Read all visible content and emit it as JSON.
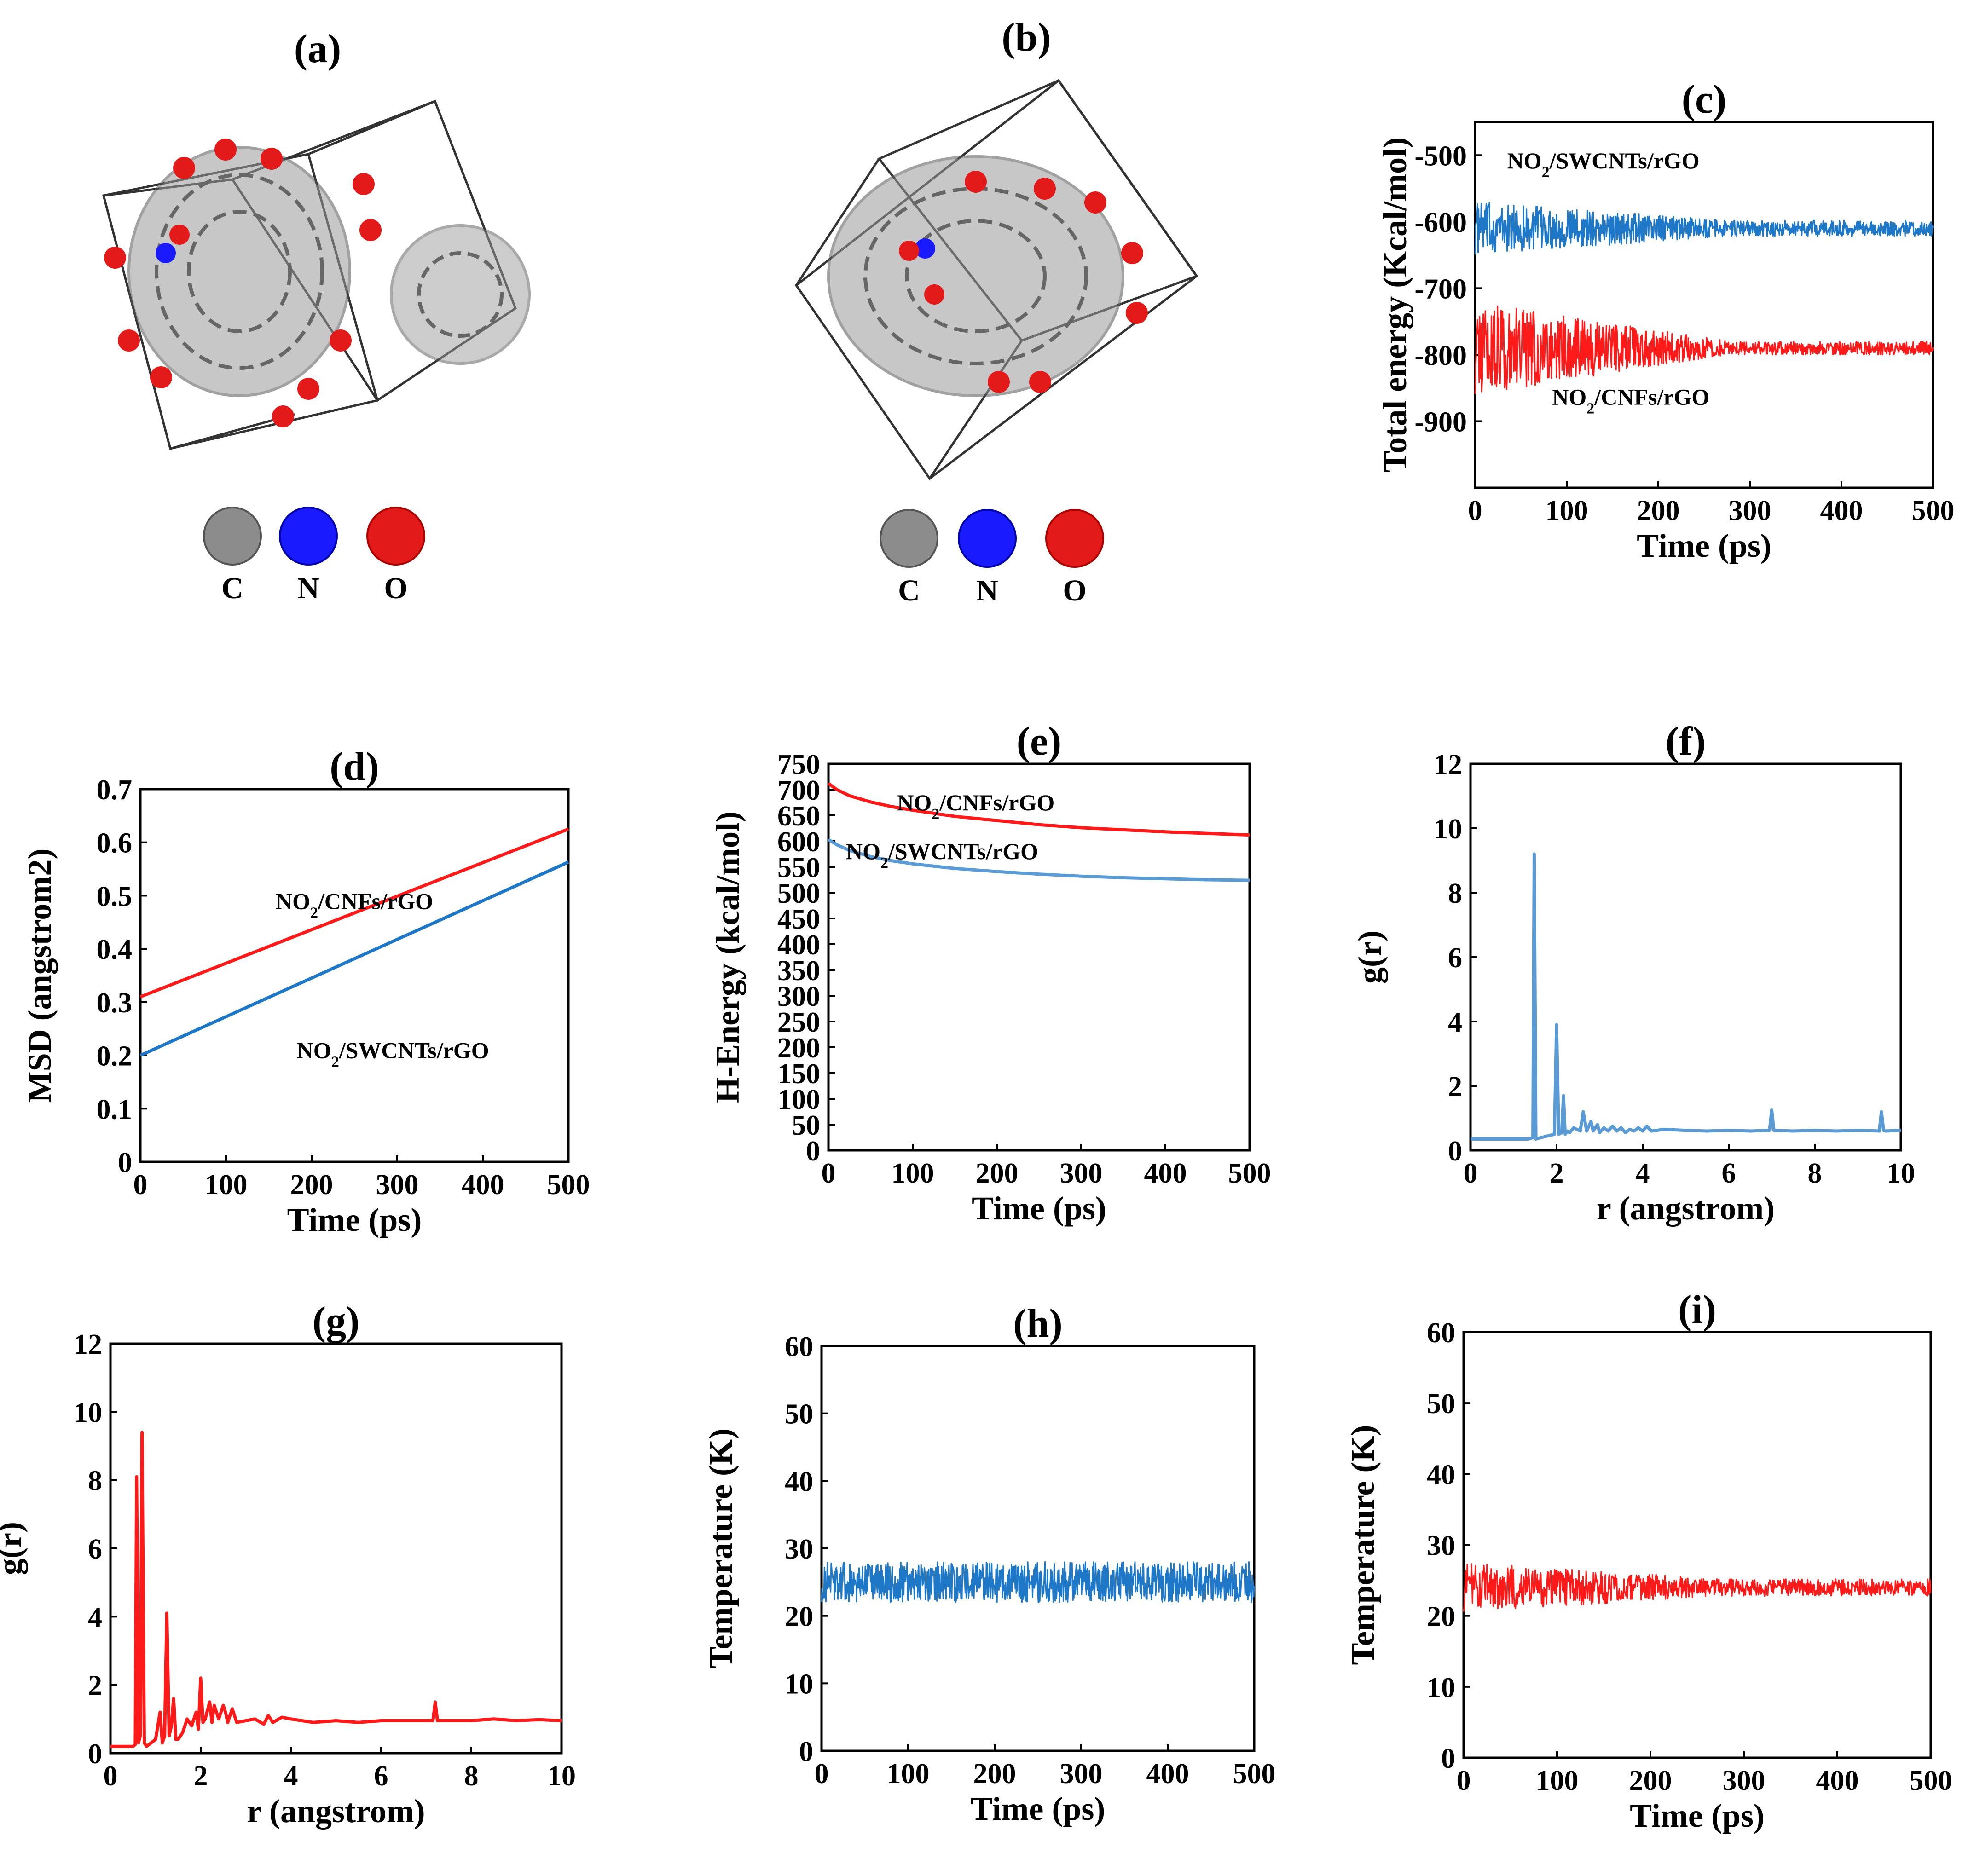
{
  "figure": {
    "colors": {
      "blue": "#1f77c8",
      "red": "#ff1a1a",
      "light_blue": "#5b9bd5",
      "carbon": "#8c8c8c",
      "nitrogen": "#1a1aff",
      "oxygen": "#e31a1a"
    }
  },
  "panel_a": {
    "label": "(a)",
    "legend": [
      {
        "element": "C",
        "color": "#8c8c8c"
      },
      {
        "element": "N",
        "color": "#1a1aff"
      },
      {
        "element": "O",
        "color": "#e31a1a"
      }
    ]
  },
  "panel_b": {
    "label": "(b)",
    "legend": [
      {
        "element": "C",
        "color": "#8c8c8c"
      },
      {
        "element": "N",
        "color": "#1a1aff"
      },
      {
        "element": "O",
        "color": "#e31a1a"
      }
    ]
  },
  "chart_data": [
    {
      "id": "c",
      "label": "(c)",
      "type": "line",
      "noisy": true,
      "xlabel": "Time (ps)",
      "ylabel": "Total energy (Kcal/mol)",
      "xlim": [
        0,
        500
      ],
      "ylim": [
        -1000,
        -450
      ],
      "xticks": [
        0,
        100,
        200,
        300,
        400,
        500
      ],
      "yticks": [
        -500,
        -600,
        -700,
        -800,
        -900
      ],
      "series": [
        {
          "name": "NO2/SWCNTs/rGO",
          "color": "#1f77c8",
          "mean": -610,
          "noise_start": 40,
          "noise_end": 12
        },
        {
          "name": "NO2/CNFs/rGO",
          "color": "#ff1a1a",
          "mean": -790,
          "noise_start": 70,
          "noise_end": 10
        }
      ],
      "annotations": [
        {
          "pre": "NO",
          "sub": "2",
          "post": "/SWCNTs/rGO",
          "x": 140,
          "y": -520
        },
        {
          "pre": "NO",
          "sub": "2",
          "post": "/CNFs/rGO",
          "x": 170,
          "y": -875
        }
      ]
    },
    {
      "id": "d",
      "label": "(d)",
      "type": "line",
      "xlabel": "Time (ps)",
      "ylabel": "MSD (angstrom2)",
      "xlim": [
        0,
        500
      ],
      "ylim": [
        0,
        0.7
      ],
      "xticks": [
        0,
        100,
        200,
        300,
        400,
        500
      ],
      "yticks": [
        0,
        0.1,
        0.2,
        0.3,
        0.4,
        0.5,
        0.6,
        0.7
      ],
      "series": [
        {
          "name": "NO2/CNFs/rGO",
          "color": "#ff1a1a",
          "x": [
            0,
            500
          ],
          "y": [
            0.31,
            0.625
          ]
        },
        {
          "name": "NO2/SWCNTs/rGO",
          "color": "#1f77c8",
          "x": [
            0,
            500
          ],
          "y": [
            0.2,
            0.563
          ]
        }
      ],
      "annotations": [
        {
          "pre": "NO",
          "sub": "2",
          "post": "/CNFs/rGO",
          "x": 250,
          "y": 0.475
        },
        {
          "pre": "NO",
          "sub": "2",
          "post": "/SWCNTs/rGO",
          "x": 295,
          "y": 0.195
        }
      ]
    },
    {
      "id": "e",
      "label": "(e)",
      "type": "line",
      "xlabel": "Time (ps)",
      "ylabel": "H-Energy (kcal/mol)",
      "xlim": [
        0,
        500
      ],
      "ylim": [
        0,
        750
      ],
      "xticks": [
        0,
        100,
        200,
        300,
        400,
        500
      ],
      "yticks": [
        0,
        50,
        100,
        150,
        200,
        250,
        300,
        350,
        400,
        450,
        500,
        550,
        600,
        650,
        700,
        750
      ],
      "series": [
        {
          "name": "NO2/CNFs/rGO",
          "color": "#ff1a1a",
          "x": [
            0,
            10,
            25,
            50,
            75,
            100,
            150,
            200,
            250,
            300,
            350,
            400,
            450,
            500
          ],
          "y": [
            712,
            700,
            688,
            676,
            667,
            660,
            648,
            640,
            632,
            626,
            622,
            618,
            615,
            612
          ]
        },
        {
          "name": "NO2/SWCNTs/rGO",
          "color": "#5b9bd5",
          "x": [
            0,
            10,
            25,
            50,
            75,
            100,
            150,
            200,
            250,
            300,
            350,
            400,
            450,
            500
          ],
          "y": [
            603,
            593,
            582,
            570,
            562,
            556,
            547,
            541,
            536,
            532,
            529,
            527,
            525,
            524
          ]
        }
      ],
      "annotations": [
        {
          "pre": "NO",
          "sub": "2",
          "post": "/CNFs/rGO",
          "x": 175,
          "y": 660
        },
        {
          "pre": "NO",
          "sub": "2",
          "post": "/SWCNTs/rGO",
          "x": 135,
          "y": 565
        }
      ]
    },
    {
      "id": "f",
      "label": "(f)",
      "type": "line",
      "xlabel": "r (angstrom)",
      "ylabel": "g(r)",
      "xlim": [
        0,
        10
      ],
      "ylim": [
        0,
        12
      ],
      "xticks": [
        0,
        2,
        4,
        6,
        8,
        10
      ],
      "yticks": [
        0,
        2,
        4,
        6,
        8,
        10,
        12
      ],
      "series": [
        {
          "name": "g(r)",
          "color": "#5b9bd5",
          "x": [
            0,
            1.35,
            1.45,
            1.48,
            1.52,
            1.65,
            1.95,
            2.0,
            2.05,
            2.12,
            2.16,
            2.2,
            2.25,
            2.3,
            2.4,
            2.55,
            2.62,
            2.7,
            2.8,
            2.85,
            2.95,
            3.0,
            3.1,
            3.2,
            3.3,
            3.4,
            3.5,
            3.6,
            3.7,
            3.8,
            3.9,
            4.0,
            4.1,
            4.2,
            4.5,
            5.0,
            5.5,
            6.0,
            6.5,
            6.95,
            7.0,
            7.05,
            7.5,
            8.0,
            8.5,
            9.0,
            9.5,
            9.55,
            9.6,
            9.65,
            10
          ],
          "y": [
            0.35,
            0.35,
            0.4,
            9.2,
            0.35,
            0.4,
            0.5,
            3.9,
            0.5,
            0.55,
            1.7,
            0.5,
            0.6,
            0.55,
            0.7,
            0.6,
            1.2,
            0.6,
            0.9,
            0.6,
            0.8,
            0.55,
            0.7,
            0.6,
            0.75,
            0.6,
            0.7,
            0.55,
            0.65,
            0.6,
            0.7,
            0.6,
            0.75,
            0.6,
            0.65,
            0.62,
            0.6,
            0.62,
            0.6,
            0.62,
            1.25,
            0.62,
            0.6,
            0.62,
            0.6,
            0.62,
            0.6,
            1.2,
            0.62,
            0.6,
            0.62
          ]
        }
      ]
    },
    {
      "id": "g",
      "label": "(g)",
      "type": "line",
      "xlabel": "r (angstrom)",
      "ylabel": "g(r)",
      "xlim": [
        0,
        10
      ],
      "ylim": [
        0,
        12
      ],
      "xticks": [
        0,
        2,
        4,
        6,
        8,
        10
      ],
      "yticks": [
        0,
        2,
        4,
        6,
        8,
        10,
        12
      ],
      "series": [
        {
          "name": "g(r)",
          "color": "#ff1a1a",
          "x": [
            0,
            0.5,
            0.55,
            0.58,
            0.62,
            0.66,
            0.7,
            0.75,
            0.8,
            1.0,
            1.1,
            1.15,
            1.2,
            1.25,
            1.3,
            1.35,
            1.4,
            1.45,
            1.5,
            1.6,
            1.7,
            1.8,
            1.9,
            1.95,
            2.0,
            2.05,
            2.1,
            2.2,
            2.25,
            2.3,
            2.4,
            2.5,
            2.55,
            2.6,
            2.7,
            2.8,
            3.0,
            3.2,
            3.4,
            3.5,
            3.6,
            3.8,
            4.0,
            4.5,
            5.0,
            5.5,
            6.0,
            6.5,
            7.0,
            7.15,
            7.2,
            7.25,
            7.5,
            8.0,
            8.5,
            9.0,
            9.5,
            10
          ],
          "y": [
            0.2,
            0.2,
            0.25,
            8.1,
            0.3,
            0.5,
            9.4,
            0.3,
            0.2,
            0.4,
            1.2,
            0.3,
            0.5,
            4.1,
            0.5,
            0.8,
            1.6,
            0.4,
            0.4,
            0.6,
            1.0,
            0.8,
            1.2,
            0.7,
            2.2,
            0.9,
            1.0,
            1.5,
            0.9,
            1.4,
            1.0,
            1.4,
            1.2,
            0.9,
            1.3,
            0.9,
            0.95,
            1.0,
            0.85,
            1.1,
            0.9,
            1.05,
            1.0,
            0.9,
            0.95,
            0.9,
            0.95,
            0.95,
            0.95,
            0.95,
            1.5,
            0.95,
            0.95,
            0.95,
            1.0,
            0.95,
            0.98,
            0.95
          ]
        }
      ]
    },
    {
      "id": "h",
      "label": "(h)",
      "type": "line",
      "noisy": true,
      "xlabel": "Time (ps)",
      "ylabel": "Temperature (K)",
      "xlim": [
        0,
        500
      ],
      "ylim": [
        0,
        60
      ],
      "xticks": [
        0,
        100,
        200,
        300,
        400,
        500
      ],
      "yticks": [
        0,
        10,
        20,
        30,
        40,
        50,
        60
      ],
      "series": [
        {
          "name": "Temperature",
          "color": "#1f77c8",
          "mean": 25,
          "noise_start": 3,
          "noise_end": 3
        }
      ]
    },
    {
      "id": "i",
      "label": "(i)",
      "type": "line",
      "noisy": true,
      "xlabel": "Time (ps)",
      "ylabel": "Temperature (K)",
      "xlim": [
        0,
        500
      ],
      "ylim": [
        0,
        60
      ],
      "xticks": [
        0,
        100,
        200,
        300,
        400,
        500
      ],
      "yticks": [
        0,
        10,
        20,
        30,
        40,
        50,
        60
      ],
      "series": [
        {
          "name": "Temperature",
          "color": "#ff1a1a",
          "mean": 24,
          "noise_start": 3.5,
          "noise_end": 1.2
        }
      ]
    }
  ]
}
